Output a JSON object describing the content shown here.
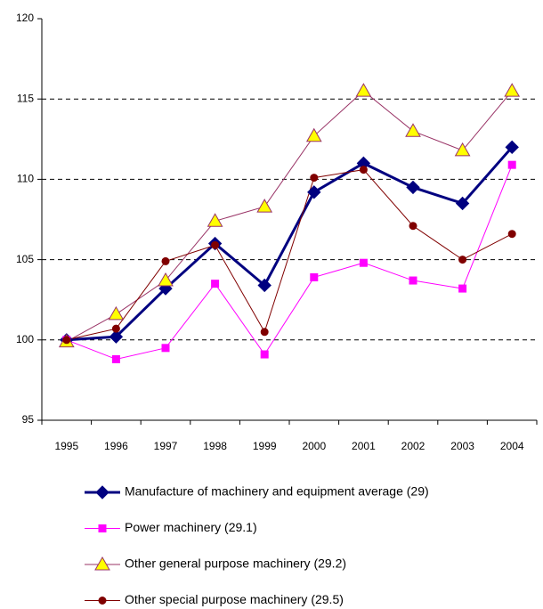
{
  "chart_data": {
    "type": "line",
    "categories": [
      "1995",
      "1996",
      "1997",
      "1998",
      "1999",
      "2000",
      "2001",
      "2002",
      "2003",
      "2004"
    ],
    "series": [
      {
        "name": "Manufacture of machinery and equipment average (29)",
        "color": "#000080",
        "marker": "diamond",
        "marker_fill": "#000080",
        "line_width": 3,
        "values": [
          100,
          100.2,
          103.2,
          106,
          103.4,
          109.2,
          111,
          109.5,
          108.5,
          112
        ]
      },
      {
        "name": "Power machinery (29.1)",
        "color": "#ff00ff",
        "marker": "square",
        "marker_fill": "#ff00ff",
        "line_width": 1,
        "values": [
          100,
          98.8,
          99.5,
          103.5,
          99.1,
          103.9,
          104.8,
          103.7,
          103.2,
          110.9
        ]
      },
      {
        "name": "Other general purpose machinery (29.2)",
        "color": "#993366",
        "marker": "triangle",
        "marker_fill": "#ffff00",
        "line_width": 1,
        "values": [
          99.9,
          101.6,
          103.7,
          107.4,
          108.3,
          112.7,
          115.5,
          113,
          111.8,
          115.5
        ]
      },
      {
        "name": "Other special purpose machinery (29.5)",
        "color": "#800000",
        "marker": "circle",
        "marker_fill": "#800000",
        "line_width": 1,
        "values": [
          100,
          100.7,
          104.9,
          105.9,
          100.5,
          110.1,
          110.6,
          107.1,
          105,
          106.6
        ]
      }
    ],
    "ylim": [
      95,
      120
    ],
    "yticks": [
      95,
      100,
      105,
      110,
      115,
      120
    ],
    "grid": true,
    "legend": "bottom"
  }
}
